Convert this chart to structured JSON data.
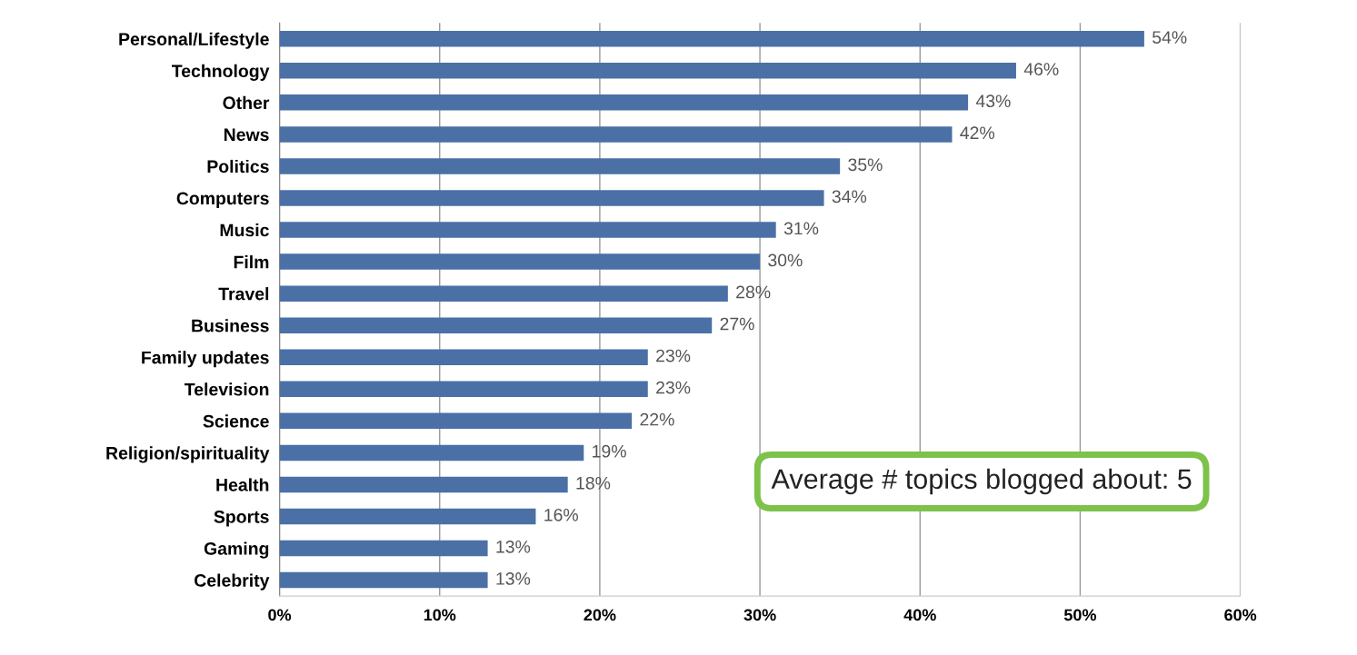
{
  "chart_data": {
    "type": "bar",
    "orientation": "horizontal",
    "categories": [
      "Personal/Lifestyle",
      "Technology",
      "Other",
      "News",
      "Politics",
      "Computers",
      "Music",
      "Film",
      "Travel",
      "Business",
      "Family updates",
      "Television",
      "Science",
      "Religion/spirituality",
      "Health",
      "Sports",
      "Gaming",
      "Celebrity"
    ],
    "values": [
      54,
      46,
      43,
      42,
      35,
      34,
      31,
      30,
      28,
      27,
      23,
      23,
      22,
      19,
      18,
      16,
      13,
      13
    ],
    "value_labels": [
      "54%",
      "46%",
      "43%",
      "42%",
      "35%",
      "34%",
      "31%",
      "30%",
      "28%",
      "27%",
      "23%",
      "23%",
      "22%",
      "19%",
      "18%",
      "16%",
      "13%",
      "13%"
    ],
    "color": "#4a70a6",
    "xlim": [
      0,
      60
    ],
    "xticks": [
      {
        "value": 0,
        "label": "0%"
      },
      {
        "value": 10,
        "label": "10%"
      },
      {
        "value": 20,
        "label": "20%"
      },
      {
        "value": 30,
        "label": "30%"
      },
      {
        "value": 40,
        "label": "40%"
      },
      {
        "value": 50,
        "label": "50%"
      },
      {
        "value": 60,
        "label": "60%"
      }
    ],
    "grid": "x",
    "annotations": [
      "Average # topics blogged about: 5"
    ]
  }
}
